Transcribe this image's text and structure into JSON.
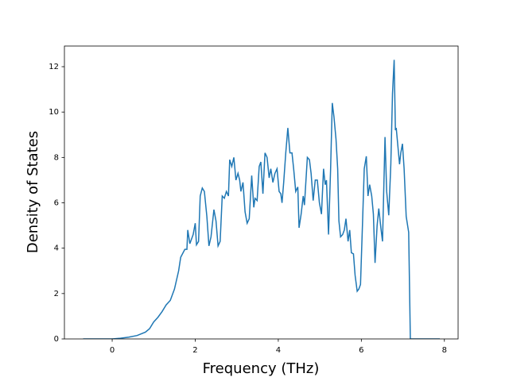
{
  "chart_data": {
    "type": "line",
    "x_label": "Frequency (THz)",
    "y_label": "Density of States",
    "xlim": [
      -1.15,
      8.33
    ],
    "ylim": [
      0,
      12.91
    ],
    "xticks": [
      0,
      2,
      4,
      6,
      8
    ],
    "yticks": [
      0,
      2,
      4,
      6,
      8,
      10,
      12
    ],
    "grid": false,
    "series": [
      {
        "color": "#1f77b4",
        "x": [
          -0.7,
          0,
          0.2,
          0.4,
          0.6,
          0.8,
          0.9,
          1.0,
          1.1,
          1.2,
          1.3,
          1.4,
          1.5,
          1.6,
          1.65,
          1.75,
          1.8,
          1.82,
          1.87,
          1.95,
          2.0,
          2.03,
          2.08,
          2.12,
          2.17,
          2.22,
          2.28,
          2.33,
          2.38,
          2.45,
          2.5,
          2.55,
          2.6,
          2.65,
          2.7,
          2.75,
          2.8,
          2.83,
          2.88,
          2.93,
          2.98,
          3.03,
          3.07,
          3.1,
          3.15,
          3.2,
          3.25,
          3.3,
          3.36,
          3.41,
          3.44,
          3.49,
          3.54,
          3.58,
          3.63,
          3.68,
          3.73,
          3.78,
          3.82,
          3.87,
          3.92,
          3.97,
          4.02,
          4.06,
          4.09,
          4.13,
          4.18,
          4.23,
          4.28,
          4.33,
          4.37,
          4.42,
          4.47,
          4.5,
          4.55,
          4.6,
          4.63,
          4.7,
          4.75,
          4.79,
          4.84,
          4.89,
          4.94,
          4.99,
          5.04,
          5.09,
          5.13,
          5.16,
          5.21,
          5.26,
          5.3,
          5.34,
          5.39,
          5.43,
          5.46,
          5.5,
          5.55,
          5.59,
          5.63,
          5.68,
          5.72,
          5.76,
          5.81,
          5.85,
          5.9,
          5.94,
          5.98,
          6.03,
          6.07,
          6.12,
          6.16,
          6.2,
          6.25,
          6.29,
          6.33,
          6.38,
          6.42,
          6.47,
          6.51,
          6.57,
          6.61,
          6.66,
          6.71,
          6.75,
          6.79,
          6.82,
          6.84,
          6.88,
          6.92,
          6.95,
          6.99,
          7.03,
          7.08,
          7.14,
          7.18,
          7.89
        ],
        "values": [
          0,
          0,
          0.03,
          0.08,
          0.15,
          0.3,
          0.45,
          0.75,
          0.95,
          1.2,
          1.5,
          1.7,
          2.2,
          3.0,
          3.6,
          3.95,
          3.95,
          4.8,
          4.2,
          4.6,
          5.1,
          4.15,
          4.3,
          6.3,
          6.65,
          6.5,
          5.4,
          4.1,
          4.5,
          5.7,
          5.2,
          4.1,
          4.3,
          6.3,
          6.2,
          6.5,
          6.3,
          7.9,
          7.6,
          8.0,
          7.0,
          7.3,
          7.0,
          6.5,
          6.9,
          5.6,
          5.1,
          5.3,
          7.2,
          5.8,
          6.2,
          6.1,
          7.6,
          7.8,
          6.4,
          8.2,
          8.0,
          7.1,
          7.5,
          6.9,
          7.3,
          7.5,
          6.5,
          6.4,
          6.0,
          6.9,
          8.2,
          9.3,
          8.2,
          8.2,
          7.5,
          6.5,
          6.7,
          4.9,
          5.5,
          6.3,
          5.9,
          8.0,
          7.9,
          7.3,
          6.1,
          7.0,
          7.0,
          6.0,
          5.5,
          7.5,
          6.8,
          7.0,
          4.6,
          7.5,
          10.4,
          9.8,
          8.8,
          7.5,
          5.2,
          4.5,
          4.6,
          4.8,
          5.3,
          4.3,
          4.8,
          3.8,
          3.75,
          2.8,
          2.1,
          2.2,
          2.4,
          5.2,
          7.5,
          8.05,
          6.3,
          6.8,
          6.3,
          5.5,
          3.35,
          5.0,
          5.75,
          4.9,
          4.3,
          8.9,
          6.5,
          5.45,
          7.7,
          10.8,
          12.3,
          9.2,
          9.3,
          8.5,
          7.7,
          8.2,
          8.6,
          7.5,
          5.4,
          4.7,
          0,
          0
        ]
      }
    ]
  }
}
